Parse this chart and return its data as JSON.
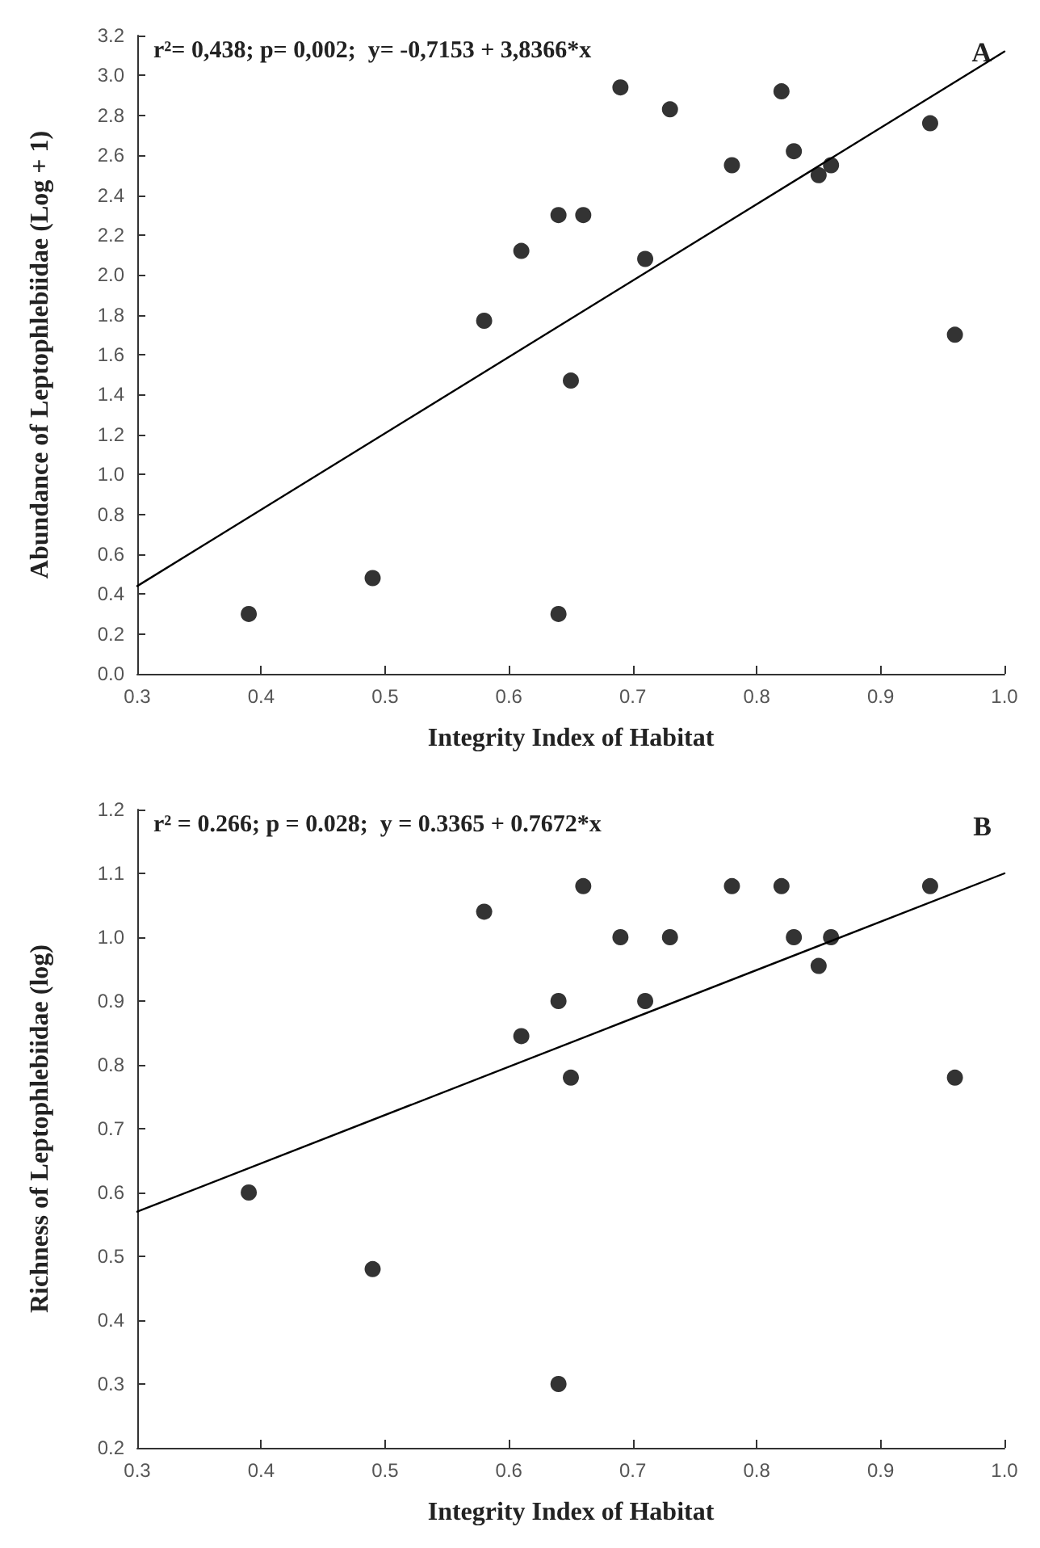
{
  "chart_data": [
    {
      "type": "scatter",
      "xlabel": "Integrity Index of Habitat",
      "ylabel": "Abundance of Leptophlebiidae (Log + 1)",
      "annotations": [
        "r²= 0,438; p= 0,002;  y= -0,7153 + 3,8366*x",
        "A"
      ],
      "marker": "circle",
      "grid": false,
      "xlim": [
        0.3,
        1.0
      ],
      "xticks": [
        0.3,
        0.4,
        0.5,
        0.6,
        0.7,
        0.8,
        0.9,
        {
          "value": 1,
          "label": "1.0"
        }
      ],
      "ylim": [
        0,
        3.2
      ],
      "yticks": [
        {
          "value": 0,
          "label": "0.0"
        },
        0.2,
        0.4,
        0.6,
        0.8,
        {
          "value": 1,
          "label": "1.0"
        },
        1.2,
        1.4,
        1.6,
        1.8,
        {
          "value": 2,
          "label": "2.0"
        },
        2.2,
        2.4,
        2.6,
        2.8,
        {
          "value": 3,
          "label": "3.0"
        },
        3.2
      ],
      "series": [
        {
          "color": "#000000",
          "x": [
            0.39,
            0.49,
            0.58,
            0.61,
            0.64,
            0.64,
            0.65,
            0.66,
            0.69,
            0.71,
            0.73,
            0.78,
            0.82,
            0.83,
            0.85,
            0.86,
            0.94,
            0.96
          ],
          "values": [
            0.3,
            0.48,
            1.77,
            2.12,
            2.3,
            0.3,
            1.47,
            2.3,
            2.94,
            2.08,
            2.83,
            2.55,
            2.92,
            2.62,
            2.5,
            2.55,
            2.76,
            1.7
          ]
        },
        {
          "type": "line",
          "color": "#000000",
          "marker": "none",
          "x": [
            0.3,
            1.0
          ],
          "values": [
            0.44,
            3.12
          ]
        }
      ]
    },
    {
      "type": "scatter",
      "xlabel": "Integrity Index of Habitat",
      "ylabel": "Richness of Leptophlebiidae (log)",
      "annotations": [
        "r² = 0.266; p = 0.028;  y = 0.3365 + 0.7672*x",
        "B"
      ],
      "marker": "circle",
      "grid": false,
      "xlim": [
        0.3,
        1.0
      ],
      "xticks": [
        0.3,
        0.4,
        0.5,
        0.6,
        0.7,
        0.8,
        0.9,
        {
          "value": 1,
          "label": "1.0"
        }
      ],
      "ylim": [
        0.2,
        1.2
      ],
      "yticks": [
        0.2,
        0.3,
        0.4,
        0.5,
        0.6,
        0.7,
        0.8,
        0.9,
        {
          "value": 1,
          "label": "1.0"
        },
        1.1,
        1.2
      ],
      "series": [
        {
          "color": "#000000",
          "x": [
            0.39,
            0.49,
            0.58,
            0.61,
            0.64,
            0.64,
            0.65,
            0.66,
            0.69,
            0.71,
            0.73,
            0.78,
            0.82,
            0.83,
            0.85,
            0.86,
            0.94,
            0.96
          ],
          "values": [
            0.6,
            0.48,
            1.04,
            0.845,
            0.9,
            0.3,
            0.78,
            1.08,
            1.0,
            0.9,
            1.0,
            1.08,
            1.08,
            1.0,
            0.955,
            1.0,
            1.08,
            0.78
          ]
        },
        {
          "type": "line",
          "color": "#000000",
          "marker": "none",
          "x": [
            0.3,
            1.0
          ],
          "values": [
            0.57,
            1.1
          ]
        }
      ]
    }
  ]
}
